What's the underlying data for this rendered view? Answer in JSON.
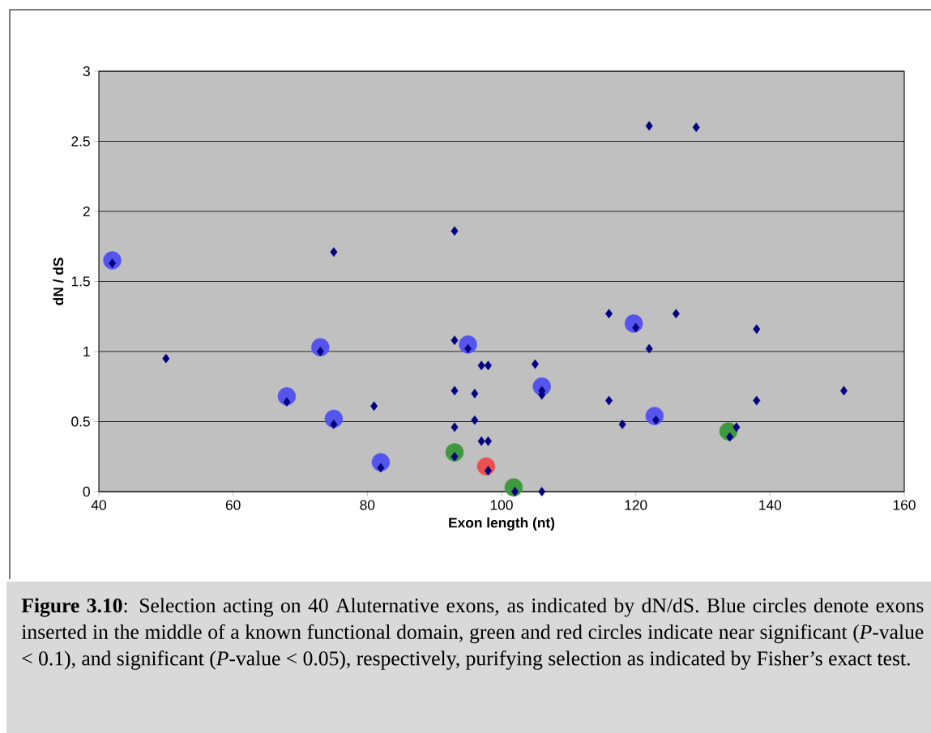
{
  "chart_data": {
    "type": "scatter",
    "xlabel": "Exon length (nt)",
    "ylabel": "dN / dS",
    "xlim": [
      40,
      160
    ],
    "ylim": [
      0,
      3
    ],
    "xticks": [
      40,
      60,
      80,
      100,
      120,
      140,
      160
    ],
    "yticks": [
      0,
      {
        "value": 0.5,
        "label": "0.5"
      },
      1,
      {
        "value": 1.5,
        "label": "1.5"
      },
      2,
      {
        "value": 2.5,
        "label": "2.5"
      },
      3
    ],
    "grid": "y",
    "annotations": [
      "**Figure 3.10**: Selection acting on 40 Aluternative exons, as indicated by dN/dS. Blue circles denote exons inserted in the middle of a known functional domain, green and red circles indicate near significant (*P*-value < 0.1), and significant (*P*-value < 0.05), respectively, purifying selection as indicated by Fisher’s exact test."
    ],
    "series": [
      {
        "color": "#5555ee",
        "marker": "circle",
        "x": [
          42,
          68,
          73,
          75,
          82,
          95,
          106,
          119.7,
          122.8
        ],
        "values": [
          1.65,
          0.68,
          1.03,
          0.52,
          0.21,
          1.05,
          0.75,
          1.2,
          0.54
        ]
      },
      {
        "color": "#3f9a3f",
        "marker": "circle",
        "x": [
          93,
          101.8,
          133.8
        ],
        "values": [
          0.28,
          0.03,
          0.43
        ]
      },
      {
        "color": "#ea5050",
        "marker": "circle",
        "x": [
          97.7
        ],
        "values": [
          0.18
        ]
      },
      {
        "color": "#000080",
        "marker": "diamond",
        "x": [
          42,
          50,
          68,
          73,
          75,
          75,
          81,
          82,
          93,
          93,
          93,
          93,
          93,
          95,
          96,
          96,
          97,
          98,
          97,
          98,
          98,
          102,
          105,
          106,
          106,
          106,
          116,
          116,
          118,
          120,
          122,
          122,
          123,
          126,
          129,
          134,
          135,
          138,
          138,
          151
        ],
        "values": [
          1.63,
          0.95,
          0.64,
          1.0,
          1.71,
          0.48,
          0.61,
          0.17,
          1.86,
          1.08,
          0.72,
          0.46,
          0.25,
          1.02,
          0.7,
          0.51,
          0.9,
          0.9,
          0.36,
          0.36,
          0.15,
          0.0,
          0.91,
          0.72,
          0.69,
          0.0,
          1.27,
          0.65,
          0.48,
          1.17,
          2.61,
          1.02,
          0.51,
          1.27,
          2.6,
          0.39,
          0.46,
          1.16,
          0.65,
          0.72
        ]
      }
    ]
  }
}
